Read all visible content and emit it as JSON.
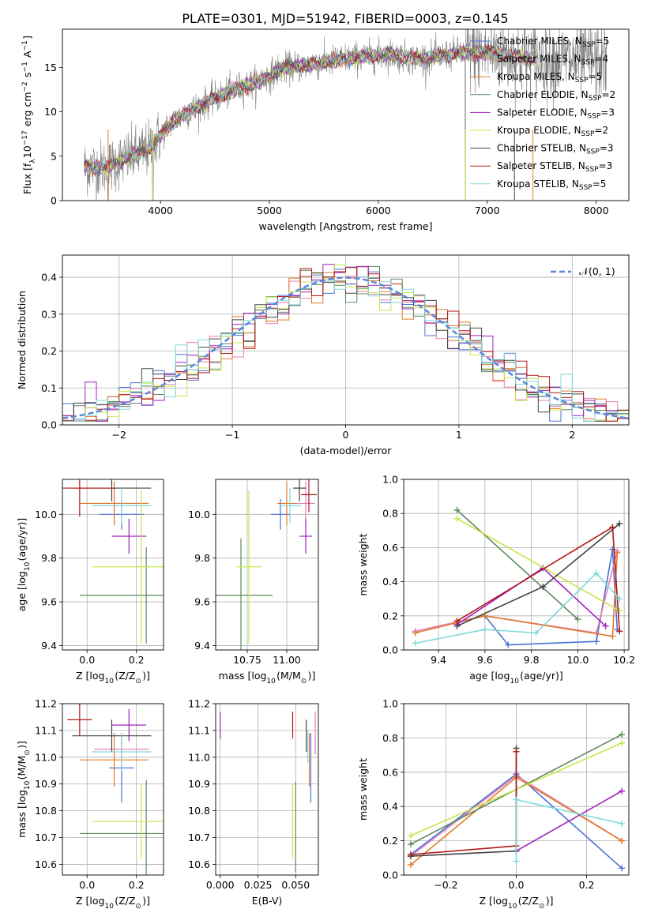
{
  "figure": {
    "title": "PLATE=0301, MJD=51942, FIBERID=0003, z=0.145"
  },
  "legend_top": [
    {
      "label": "Chabrier MILES, N$_{SSP}$=5",
      "base": "Chabrier MILES, N",
      "sub": "SSP",
      "tail": "=5",
      "color": "#4c72d6"
    },
    {
      "label": "Salpeter MILES, N$_{SSP}$=4",
      "base": "Salpeter MILES, N",
      "sub": "SSP",
      "tail": "=4",
      "color": "#e77fb4"
    },
    {
      "label": "Kroupa MILES, N$_{SSP}$=5",
      "base": "Kroupa MILES, N",
      "sub": "SSP",
      "tail": "=5",
      "color": "#e07b2a"
    },
    {
      "label": "Chabrier ELODIE, N$_{SSP}$=2",
      "base": "Chabrier ELODIE, N",
      "sub": "SSP",
      "tail": "=2",
      "color": "#5b8a5b"
    },
    {
      "label": "Salpeter ELODIE, N$_{SSP}$=3",
      "base": "Salpeter ELODIE, N",
      "sub": "SSP",
      "tail": "=3",
      "color": "#a020c0"
    },
    {
      "label": "Kroupa ELODIE, N$_{SSP}$=2",
      "base": "Kroupa ELODIE, N",
      "sub": "SSP",
      "tail": "=2",
      "color": "#c8e64b"
    },
    {
      "label": "Chabrier STELIB, N$_{SSP}$=3",
      "base": "Chabrier STELIB, N",
      "sub": "SSP",
      "tail": "=3",
      "color": "#444444"
    },
    {
      "label": "Salpeter STELIB, N$_{SSP}$=3",
      "base": "Salpeter STELIB, N",
      "sub": "SSP",
      "tail": "=3",
      "color": "#b01818"
    },
    {
      "label": "Kroupa STELIB, N$_{SSP}$=5",
      "base": "Kroupa STELIB, N",
      "sub": "SSP",
      "tail": "=5",
      "color": "#80d8d8"
    }
  ],
  "chart_data": [
    {
      "id": "spectrum",
      "type": "line",
      "xlabel": "wavelength [Angstrom, rest frame]",
      "ylabel": "Flux [f$_\\lambda$10$^{-17}$ erg cm$^{-2}$ s$^{-1}$ A$^{-1}$]",
      "xlim": [
        3100,
        8300
      ],
      "ylim": [
        0,
        19.3
      ],
      "xticks": [
        4000,
        5000,
        6000,
        7000,
        8000
      ],
      "yticks": [
        0,
        5,
        10,
        15
      ],
      "grid": false,
      "legend_position": "top-right",
      "observed_color": "#808080",
      "continuum_x": [
        3300,
        3500,
        3700,
        3900,
        4100,
        4300,
        4500,
        4700,
        4900,
        5100,
        5300,
        5500,
        5700,
        5900,
        6100,
        6300,
        6500,
        6700,
        6900,
        7100,
        7300,
        7500,
        7700,
        7900,
        8100
      ],
      "continuum_y": [
        3.8,
        3.7,
        4.8,
        5.8,
        8.8,
        10.3,
        11.5,
        12.6,
        13.4,
        14.8,
        15.2,
        15.5,
        16.0,
        16.2,
        16.5,
        16.0,
        16.1,
        16.6,
        16.7,
        16.6,
        16.1,
        15.9,
        15.8,
        15.9,
        15.6
      ],
      "observed_range": [
        3300,
        8100
      ],
      "model_range": [
        3300,
        7450
      ]
    },
    {
      "id": "residuals",
      "type": "histogram",
      "xlabel": "(data-model)/error",
      "ylabel": "Normed distribution",
      "xlim": [
        -2.5,
        2.5
      ],
      "ylim": [
        0,
        0.46
      ],
      "xticks": [
        -2,
        -1,
        0,
        1,
        2
      ],
      "yticks": [
        0.0,
        0.1,
        0.2,
        0.3,
        0.4
      ],
      "grid": true,
      "bin_width": 0.1,
      "legend": [
        {
          "label": "$\\mathcal{N}(0, 1)$",
          "text": "𝒩(0, 1)",
          "color": "#5b86dc"
        }
      ],
      "legend_position": "top-right"
    },
    {
      "id": "age_vs_Z",
      "type": "errorbar",
      "xlabel": "Z [log$_{10}$(Z/Z$_\\odot$)]",
      "ylabel": "age  [log$_{10}$(age/yr)]",
      "xlim": [
        -0.1,
        0.31
      ],
      "ylim": [
        9.38,
        10.16
      ],
      "xticks": [
        0.0,
        0.2
      ],
      "yticks": [
        9.4,
        9.6,
        9.8,
        10.0
      ],
      "grid": true,
      "points": [
        {
          "model": "Chabrier MILES",
          "color": "#4c72d6",
          "x": 0.14,
          "xerr": 0.09,
          "y": 10.0,
          "yerr": 0.07
        },
        {
          "model": "Salpeter MILES",
          "color": "#e77fb4",
          "x": 0.11,
          "xerr": 0.12,
          "y": 10.05,
          "yerr": 0.1
        },
        {
          "model": "Kroupa MILES",
          "color": "#e07b2a",
          "x": 0.11,
          "xerr": 0.14,
          "y": 10.05,
          "yerr": 0.1
        },
        {
          "model": "Chabrier ELODIE",
          "color": "#5b8a5b",
          "x": 0.24,
          "xerr": 0.27,
          "y": 9.63,
          "yerr": 0.22
        },
        {
          "model": "Salpeter ELODIE",
          "color": "#a020c0",
          "x": 0.17,
          "xerr": 0.07,
          "y": 9.9,
          "yerr": 0.08
        },
        {
          "model": "Kroupa ELODIE",
          "color": "#c8e64b",
          "x": 0.22,
          "xerr": 0.2,
          "y": 9.76,
          "yerr": 0.35
        },
        {
          "model": "Chabrier STELIB",
          "color": "#444444",
          "x": 0.1,
          "xerr": 0.16,
          "y": 10.12,
          "yerr": 0.06
        },
        {
          "model": "Salpeter STELIB",
          "color": "#b01818",
          "x": -0.03,
          "xerr": 0.14,
          "y": 10.12,
          "yerr": 0.13
        },
        {
          "model": "Kroupa STELIB",
          "color": "#80d8d8",
          "x": 0.14,
          "xerr": 0.12,
          "y": 10.04,
          "yerr": 0.08
        }
      ]
    },
    {
      "id": "age_vs_mass",
      "type": "errorbar",
      "xlabel": "mass [log$_{10}$(M/M$_\\odot$)]",
      "ylabel": "",
      "xlim": [
        10.55,
        11.2
      ],
      "ylim": [
        9.38,
        10.16
      ],
      "xticks": [
        10.75,
        11.0
      ],
      "yticks": [
        9.4,
        9.6,
        9.8,
        10.0
      ],
      "grid": true,
      "points": [
        {
          "model": "Chabrier MILES",
          "color": "#4c72d6",
          "x": 10.96,
          "xerr": 0.06,
          "y": 10.0,
          "yerr": 0.07
        },
        {
          "model": "Salpeter MILES",
          "color": "#e77fb4",
          "x": 11.12,
          "xerr": 0.06,
          "y": 10.05,
          "yerr": 0.1
        },
        {
          "model": "Kroupa MILES",
          "color": "#e07b2a",
          "x": 11.0,
          "xerr": 0.06,
          "y": 10.05,
          "yerr": 0.1
        },
        {
          "model": "Chabrier ELODIE",
          "color": "#5b8a5b",
          "x": 10.71,
          "xerr": 0.2,
          "y": 9.63,
          "yerr": 0.26
        },
        {
          "model": "Salpeter ELODIE",
          "color": "#a020c0",
          "x": 11.12,
          "xerr": 0.04,
          "y": 9.9,
          "yerr": 0.08
        },
        {
          "model": "Kroupa ELODIE",
          "color": "#c8e64b",
          "x": 10.76,
          "xerr": 0.08,
          "y": 9.76,
          "yerr": 0.35
        },
        {
          "model": "Chabrier STELIB",
          "color": "#444444",
          "x": 11.08,
          "xerr": 0.04,
          "y": 10.12,
          "yerr": 0.06
        },
        {
          "model": "Salpeter STELIB",
          "color": "#b01818",
          "x": 11.14,
          "xerr": 0.05,
          "y": 10.09,
          "yerr": 0.08
        },
        {
          "model": "Kroupa STELIB",
          "color": "#80d8d8",
          "x": 11.02,
          "xerr": 0.07,
          "y": 10.04,
          "yerr": 0.08
        }
      ]
    },
    {
      "id": "weight_vs_age",
      "type": "line",
      "xlabel": "age  [log$_{10}$(age/yr)]",
      "ylabel": "mass weight",
      "xlim": [
        9.25,
        10.22
      ],
      "ylim": [
        0.0,
        1.0
      ],
      "xticks": [
        9.4,
        9.6,
        9.8,
        10.0,
        10.2
      ],
      "yticks": [
        0.0,
        0.2,
        0.4,
        0.6,
        0.8,
        1.0
      ],
      "grid": true,
      "marker": "+",
      "series": [
        {
          "model": "Chabrier MILES",
          "color": "#4c72d6",
          "x": [
            9.6,
            9.7,
            10.08,
            10.15,
            10.17
          ],
          "y": [
            0.2,
            0.03,
            0.05,
            0.59,
            0.12
          ]
        },
        {
          "model": "Salpeter MILES",
          "color": "#e77fb4",
          "x": [
            9.3,
            9.6,
            10.08,
            10.17
          ],
          "y": [
            0.11,
            0.2,
            0.1,
            0.58
          ]
        },
        {
          "model": "Kroupa MILES",
          "color": "#e07b2a",
          "x": [
            9.3,
            9.48,
            9.6,
            10.15,
            10.17
          ],
          "y": [
            0.1,
            0.16,
            0.2,
            0.08,
            0.57
          ]
        },
        {
          "model": "Chabrier ELODIE",
          "color": "#5b8a5b",
          "x": [
            9.48,
            10.0
          ],
          "y": [
            0.82,
            0.18
          ]
        },
        {
          "model": "Salpeter ELODIE",
          "color": "#a020c0",
          "x": [
            9.48,
            9.85,
            10.12
          ],
          "y": [
            0.15,
            0.48,
            0.14
          ]
        },
        {
          "model": "Kroupa ELODIE",
          "color": "#c8e64b",
          "x": [
            9.48,
            10.18
          ],
          "y": [
            0.77,
            0.23
          ]
        },
        {
          "model": "Chabrier STELIB",
          "color": "#444444",
          "x": [
            9.48,
            9.85,
            10.18
          ],
          "y": [
            0.14,
            0.37,
            0.74
          ]
        },
        {
          "model": "Salpeter STELIB",
          "color": "#b01818",
          "x": [
            9.48,
            10.15,
            10.18
          ],
          "y": [
            0.17,
            0.72,
            0.11
          ]
        },
        {
          "model": "Kroupa STELIB",
          "color": "#80d8d8",
          "x": [
            9.3,
            9.6,
            9.82,
            10.08,
            10.18
          ],
          "y": [
            0.04,
            0.12,
            0.1,
            0.45,
            0.3
          ]
        }
      ]
    },
    {
      "id": "mass_vs_Z",
      "type": "errorbar",
      "xlabel": "Z [log$_{10}$(Z/Z$_\\odot$)]",
      "ylabel": "mass [log$_{10}$(M/M$_\\odot$)]",
      "xlim": [
        -0.1,
        0.31
      ],
      "ylim": [
        10.56,
        11.2
      ],
      "xticks": [
        0.0,
        0.2
      ],
      "yticks": [
        10.6,
        10.7,
        10.8,
        10.9,
        11.0,
        11.1,
        11.2
      ],
      "grid": true,
      "points": [
        {
          "model": "Chabrier MILES",
          "color": "#4c72d6",
          "x": 0.14,
          "xerr": 0.05,
          "y": 10.96,
          "yerr": 0.13
        },
        {
          "model": "Salpeter MILES",
          "color": "#e77fb4",
          "x": 0.14,
          "xerr": 0.11,
          "y": 11.03,
          "yerr": 0.05
        },
        {
          "model": "Kroupa MILES",
          "color": "#e07b2a",
          "x": 0.11,
          "xerr": 0.14,
          "y": 10.99,
          "yerr": 0.1
        },
        {
          "model": "Chabrier ELODIE",
          "color": "#5b8a5b",
          "x": 0.24,
          "xerr": 0.27,
          "y": 10.715,
          "yerr": 0.2
        },
        {
          "model": "Salpeter ELODIE",
          "color": "#a020c0",
          "x": 0.17,
          "xerr": 0.07,
          "y": 11.12,
          "yerr": 0.06
        },
        {
          "model": "Kroupa ELODIE",
          "color": "#c8e64b",
          "x": 0.22,
          "xerr": 0.2,
          "y": 10.76,
          "yerr": 0.14
        },
        {
          "model": "Chabrier STELIB",
          "color": "#444444",
          "x": 0.1,
          "xerr": 0.16,
          "y": 11.08,
          "yerr": 0.06
        },
        {
          "model": "Salpeter STELIB",
          "color": "#b01818",
          "x": -0.03,
          "xerr": 0.05,
          "y": 11.14,
          "yerr": 0.06
        },
        {
          "model": "Kroupa STELIB",
          "color": "#80d8d8",
          "x": 0.14,
          "xerr": 0.12,
          "y": 11.02,
          "yerr": 0.07
        }
      ]
    },
    {
      "id": "mass_vs_ebv",
      "type": "errorbar",
      "xlabel": "E(B-V)",
      "ylabel": "",
      "xlim": [
        -0.003,
        0.065
      ],
      "ylim": [
        10.56,
        11.2
      ],
      "xticks": [
        0.0,
        0.025,
        0.05
      ],
      "yticks": [
        10.6,
        10.7,
        10.8,
        10.9,
        11.0,
        11.1,
        11.2
      ],
      "grid": true,
      "points": [
        {
          "model": "Chabrier MILES",
          "color": "#4c72d6",
          "x": 0.06,
          "xerr": 0.0,
          "y": 10.96,
          "yerr": 0.13
        },
        {
          "model": "Salpeter MILES",
          "color": "#e77fb4",
          "x": 0.063,
          "xerr": 0.0,
          "y": 11.09,
          "yerr": 0.08
        },
        {
          "model": "Kroupa MILES",
          "color": "#e07b2a",
          "x": 0.059,
          "xerr": 0.0,
          "y": 10.99,
          "yerr": 0.1
        },
        {
          "model": "Chabrier ELODIE",
          "color": "#5b8a5b",
          "x": 0.05,
          "xerr": 0.0,
          "y": 10.74,
          "yerr": 0.17
        },
        {
          "model": "Salpeter ELODIE",
          "color": "#a020c0",
          "x": 0.0,
          "xerr": 0.0,
          "y": 11.12,
          "yerr": 0.05
        },
        {
          "model": "Kroupa ELODIE",
          "color": "#c8e64b",
          "x": 0.048,
          "xerr": 0.0,
          "y": 10.76,
          "yerr": 0.14
        },
        {
          "model": "Chabrier STELIB",
          "color": "#444444",
          "x": 0.057,
          "xerr": 0.0,
          "y": 11.08,
          "yerr": 0.06
        },
        {
          "model": "Salpeter STELIB",
          "color": "#b01818",
          "x": 0.048,
          "xerr": 0.0,
          "y": 11.12,
          "yerr": 0.05
        },
        {
          "model": "Kroupa STELIB",
          "color": "#80d8d8",
          "x": 0.058,
          "xerr": 0.0,
          "y": 11.04,
          "yerr": 0.06
        }
      ]
    },
    {
      "id": "weight_vs_Z",
      "type": "line",
      "xlabel": "Z [log$_{10}$(Z/Z$_\\odot$)]",
      "ylabel": "mass weight",
      "xlim": [
        -0.32,
        0.32
      ],
      "ylim": [
        0.0,
        1.0
      ],
      "xticks": [
        -0.2,
        0.0,
        0.2
      ],
      "yticks": [
        0.0,
        0.2,
        0.4,
        0.6,
        0.8,
        1.0
      ],
      "grid": true,
      "marker": "+",
      "series": [
        {
          "model": "Chabrier MILES",
          "color": "#4c72d6",
          "x": [
            -0.3,
            0.0,
            0.3
          ],
          "y": [
            0.12,
            0.59,
            0.04
          ]
        },
        {
          "model": "Salpeter MILES",
          "color": "#e77fb4",
          "x": [
            -0.3,
            0.0,
            0.3
          ],
          "y": [
            0.11,
            0.58,
            0.2
          ]
        },
        {
          "model": "Kroupa MILES",
          "color": "#e07b2a",
          "x": [
            -0.3,
            0.0,
            0.3
          ],
          "y": [
            0.06,
            0.57,
            0.2
          ]
        },
        {
          "model": "Chabrier ELODIE",
          "color": "#5b8a5b",
          "x": [
            -0.3,
            0.3
          ],
          "y": [
            0.18,
            0.82
          ]
        },
        {
          "model": "Salpeter ELODIE",
          "color": "#a020c0",
          "x": [
            0.0,
            0.3
          ],
          "y": [
            0.14,
            0.49
          ]
        },
        {
          "model": "Kroupa ELODIE",
          "color": "#c8e64b",
          "x": [
            -0.3,
            0.3
          ],
          "y": [
            0.23,
            0.77
          ]
        },
        {
          "model": "Chabrier STELIB",
          "color": "#444444",
          "x": [
            -0.3,
            0.0,
            0.0
          ],
          "y": [
            0.11,
            0.14,
            0.74
          ]
        },
        {
          "model": "Salpeter STELIB",
          "color": "#b01818",
          "x": [
            -0.3,
            0.0,
            0.0
          ],
          "y": [
            0.12,
            0.17,
            0.72
          ]
        },
        {
          "model": "Kroupa STELIB",
          "color": "#80d8d8",
          "x": [
            0.0,
            0.0,
            0.3
          ],
          "y": [
            0.08,
            0.44,
            0.3
          ]
        }
      ]
    }
  ]
}
